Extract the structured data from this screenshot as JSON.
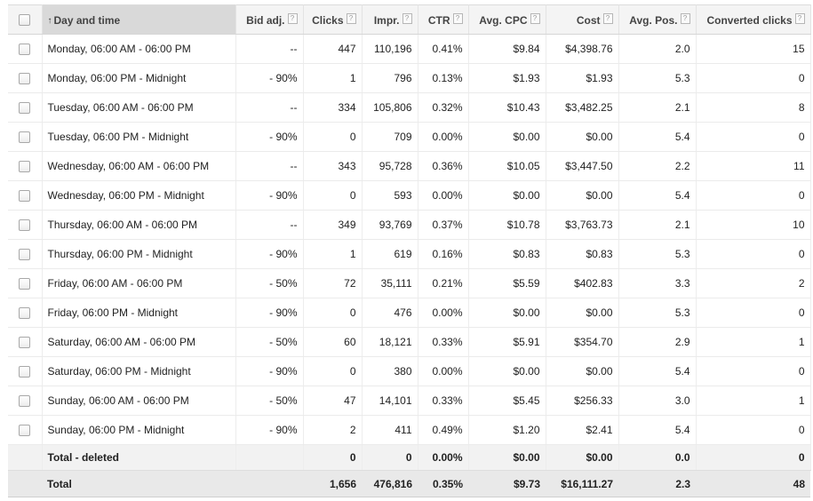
{
  "columns": {
    "day": "Day and time",
    "bid": "Bid adj.",
    "clicks": "Clicks",
    "impr": "Impr.",
    "ctr": "CTR",
    "cpc": "Avg. CPC",
    "cost": "Cost",
    "pos": "Avg. Pos.",
    "conv": "Converted clicks",
    "help_glyph": "?",
    "sort_glyph": "↑"
  },
  "rows": [
    {
      "day": "Monday, 06:00 AM - 06:00 PM",
      "bid": "--",
      "clicks": "447",
      "impr": "110,196",
      "ctr": "0.41%",
      "cpc": "$9.84",
      "cost": "$4,398.76",
      "pos": "2.0",
      "conv": "15"
    },
    {
      "day": "Monday, 06:00 PM - Midnight",
      "bid": "- 90%",
      "clicks": "1",
      "impr": "796",
      "ctr": "0.13%",
      "cpc": "$1.93",
      "cost": "$1.93",
      "pos": "5.3",
      "conv": "0"
    },
    {
      "day": "Tuesday, 06:00 AM - 06:00 PM",
      "bid": "--",
      "clicks": "334",
      "impr": "105,806",
      "ctr": "0.32%",
      "cpc": "$10.43",
      "cost": "$3,482.25",
      "pos": "2.1",
      "conv": "8"
    },
    {
      "day": "Tuesday, 06:00 PM - Midnight",
      "bid": "- 90%",
      "clicks": "0",
      "impr": "709",
      "ctr": "0.00%",
      "cpc": "$0.00",
      "cost": "$0.00",
      "pos": "5.4",
      "conv": "0"
    },
    {
      "day": "Wednesday, 06:00 AM - 06:00 PM",
      "bid": "--",
      "clicks": "343",
      "impr": "95,728",
      "ctr": "0.36%",
      "cpc": "$10.05",
      "cost": "$3,447.50",
      "pos": "2.2",
      "conv": "11"
    },
    {
      "day": "Wednesday, 06:00 PM - Midnight",
      "bid": "- 90%",
      "clicks": "0",
      "impr": "593",
      "ctr": "0.00%",
      "cpc": "$0.00",
      "cost": "$0.00",
      "pos": "5.4",
      "conv": "0"
    },
    {
      "day": "Thursday, 06:00 AM - 06:00 PM",
      "bid": "--",
      "clicks": "349",
      "impr": "93,769",
      "ctr": "0.37%",
      "cpc": "$10.78",
      "cost": "$3,763.73",
      "pos": "2.1",
      "conv": "10"
    },
    {
      "day": "Thursday, 06:00 PM - Midnight",
      "bid": "- 90%",
      "clicks": "1",
      "impr": "619",
      "ctr": "0.16%",
      "cpc": "$0.83",
      "cost": "$0.83",
      "pos": "5.3",
      "conv": "0"
    },
    {
      "day": "Friday, 06:00 AM - 06:00 PM",
      "bid": "- 50%",
      "clicks": "72",
      "impr": "35,111",
      "ctr": "0.21%",
      "cpc": "$5.59",
      "cost": "$402.83",
      "pos": "3.3",
      "conv": "2"
    },
    {
      "day": "Friday, 06:00 PM - Midnight",
      "bid": "- 90%",
      "clicks": "0",
      "impr": "476",
      "ctr": "0.00%",
      "cpc": "$0.00",
      "cost": "$0.00",
      "pos": "5.3",
      "conv": "0"
    },
    {
      "day": "Saturday, 06:00 AM - 06:00 PM",
      "bid": "- 50%",
      "clicks": "60",
      "impr": "18,121",
      "ctr": "0.33%",
      "cpc": "$5.91",
      "cost": "$354.70",
      "pos": "2.9",
      "conv": "1"
    },
    {
      "day": "Saturday, 06:00 PM - Midnight",
      "bid": "- 90%",
      "clicks": "0",
      "impr": "380",
      "ctr": "0.00%",
      "cpc": "$0.00",
      "cost": "$0.00",
      "pos": "5.4",
      "conv": "0"
    },
    {
      "day": "Sunday, 06:00 AM - 06:00 PM",
      "bid": "- 50%",
      "clicks": "47",
      "impr": "14,101",
      "ctr": "0.33%",
      "cpc": "$5.45",
      "cost": "$256.33",
      "pos": "3.0",
      "conv": "1"
    },
    {
      "day": "Sunday, 06:00 PM - Midnight",
      "bid": "- 90%",
      "clicks": "2",
      "impr": "411",
      "ctr": "0.49%",
      "cpc": "$1.20",
      "cost": "$2.41",
      "pos": "5.4",
      "conv": "0"
    }
  ],
  "deleted": {
    "label": "Total - deleted",
    "clicks": "0",
    "impr": "0",
    "ctr": "0.00%",
    "cpc": "$0.00",
    "cost": "$0.00",
    "pos": "0.0",
    "conv": "0"
  },
  "total": {
    "label": "Total",
    "clicks": "1,656",
    "impr": "476,816",
    "ctr": "0.35%",
    "cpc": "$9.73",
    "cost": "$16,111.27",
    "pos": "2.3",
    "conv": "48"
  }
}
